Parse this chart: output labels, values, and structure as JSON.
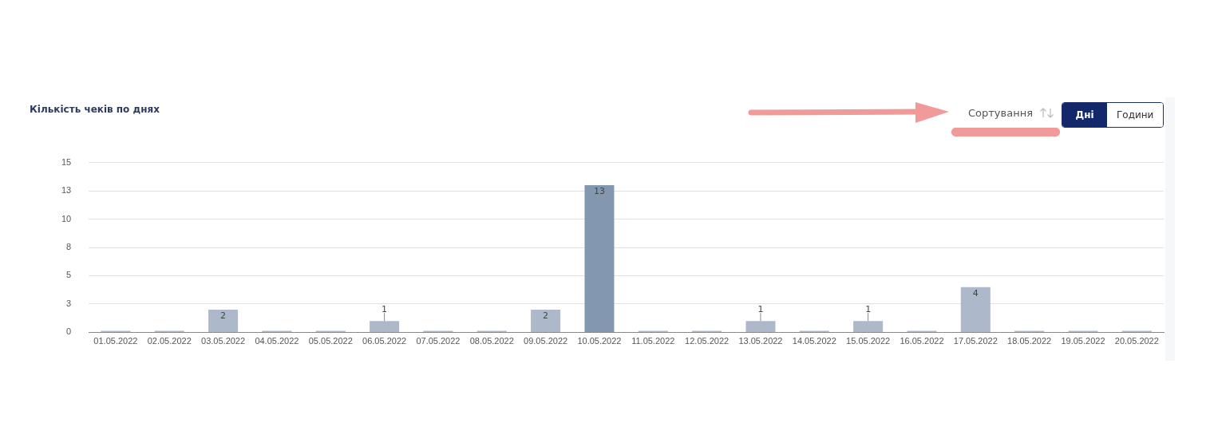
{
  "chart_data": {
    "type": "bar",
    "title": "Кількість чеків по днях",
    "categories": [
      "01.05.2022",
      "02.05.2022",
      "03.05.2022",
      "04.05.2022",
      "05.05.2022",
      "06.05.2022",
      "07.05.2022",
      "08.05.2022",
      "09.05.2022",
      "10.05.2022",
      "11.05.2022",
      "12.05.2022",
      "13.05.2022",
      "14.05.2022",
      "15.05.2022",
      "16.05.2022",
      "17.05.2022",
      "18.05.2022",
      "19.05.2022",
      "20.05.2022"
    ],
    "values": [
      0,
      0,
      2,
      0,
      0,
      1,
      0,
      0,
      2,
      13,
      0,
      0,
      1,
      0,
      1,
      0,
      4,
      0,
      0,
      0
    ],
    "value_labels": [
      null,
      null,
      "2",
      null,
      null,
      "1",
      null,
      null,
      "2",
      "13",
      null,
      null,
      "1",
      null,
      "1",
      null,
      "4",
      null,
      null,
      null
    ],
    "colors": [
      "#adb9ca",
      "#adb9ca",
      "#adb9ca",
      "#adb9ca",
      "#adb9ca",
      "#adb9ca",
      "#adb9ca",
      "#adb9ca",
      "#adb9ca",
      "#8497b0",
      "#adb9ca",
      "#adb9ca",
      "#adb9ca",
      "#adb9ca",
      "#adb9ca",
      "#adb9ca",
      "#adb9ca",
      "#adb9ca",
      "#adb9ca",
      "#adb9ca"
    ],
    "ylim": [
      0,
      15
    ],
    "yticks": [
      0,
      {
        "value": 2.5,
        "label": "3"
      },
      5,
      {
        "value": 7.5,
        "label": "8"
      },
      10,
      {
        "value": 12.5,
        "label": "13"
      },
      15
    ],
    "grid": "y",
    "annotations": [
      "Сортування",
      "Дні",
      "Години"
    ]
  }
}
